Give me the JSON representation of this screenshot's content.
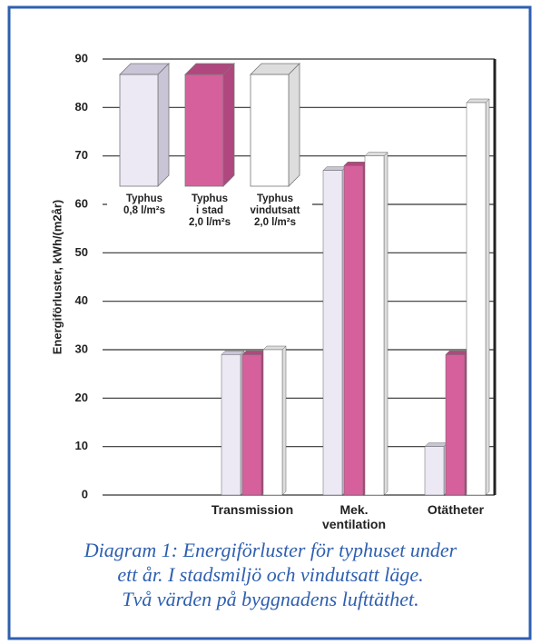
{
  "chart_data": {
    "type": "bar",
    "y_label": "Energiförluster, kWh/(m2år)",
    "categories": [
      "Transmission",
      "Mek.\nventilation",
      "Otätheter"
    ],
    "series": [
      {
        "name": "Typhus\n0,8 l/m²s",
        "color": "#ece8f4",
        "values": [
          29,
          67,
          10
        ]
      },
      {
        "name": "Typhus\ni stad\n2,0 l/m²s",
        "color": "#d6609c",
        "values": [
          29,
          68,
          29
        ]
      },
      {
        "name": "Typhus\nvindutsatt\n2,0 l/m²s",
        "color": "#ffffff",
        "values": [
          30,
          70,
          81
        ]
      }
    ],
    "ylim": [
      0,
      90
    ],
    "yticks": [
      0,
      10,
      20,
      30,
      40,
      50,
      60,
      70,
      80,
      90
    ],
    "grid": true,
    "caption": [
      "Diagram 1: Energiförluster för typhuset under",
      "ett år. I stadsmiljö och vindutsatt läge.",
      "Två värden på byggnadens lufttäthet."
    ]
  }
}
